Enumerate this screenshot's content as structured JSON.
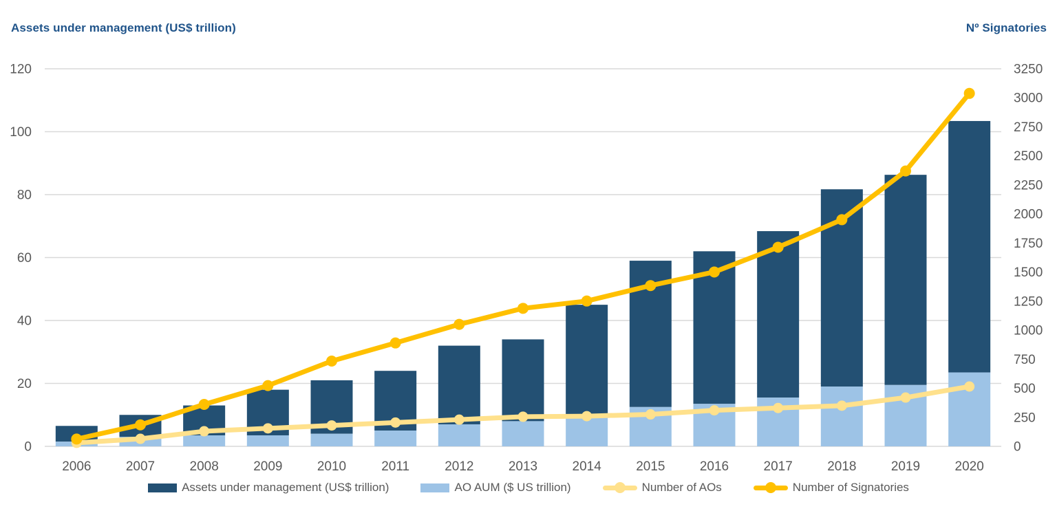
{
  "chart_data": {
    "type": "combo-bar-line",
    "categories": [
      "2006",
      "2007",
      "2008",
      "2009",
      "2010",
      "2011",
      "2012",
      "2013",
      "2014",
      "2015",
      "2016",
      "2017",
      "2018",
      "2019",
      "2020"
    ],
    "series": [
      {
        "name": "Assets under management (US$ trillion)",
        "type": "bar",
        "axis": "left",
        "color": "#235073",
        "values": [
          6.5,
          10,
          13,
          18,
          21,
          24,
          32,
          34,
          45,
          59,
          62,
          68.4,
          81.7,
          86.3,
          103.4
        ]
      },
      {
        "name": "AO AUM ($ US trillion)",
        "type": "bar-overlay",
        "axis": "left",
        "color": "#9DC3E6",
        "values": [
          1.5,
          3,
          3.5,
          3.5,
          4,
          5,
          7,
          8,
          10,
          12.5,
          13.5,
          15.5,
          19,
          19.5,
          23.5
        ]
      },
      {
        "name": "Number of AOs",
        "type": "line",
        "axis": "right",
        "color": "#FFE18C",
        "values": [
          30,
          65,
          130,
          155,
          180,
          205,
          230,
          255,
          260,
          275,
          310,
          330,
          350,
          420,
          515
        ]
      },
      {
        "name": "Number of Signatories",
        "type": "line",
        "axis": "right",
        "color": "#FFC000",
        "values": [
          63,
          185,
          361,
          523,
          734,
          890,
          1050,
          1188,
          1251,
          1384,
          1501,
          1714,
          1951,
          2370,
          3038
        ]
      }
    ],
    "left_axis": {
      "title": "Assets under management (US$ trillion)",
      "min": 0,
      "max": 120,
      "step": 20,
      "tick_labels": [
        "0",
        "20",
        "40",
        "60",
        "80",
        "100",
        "120"
      ]
    },
    "right_axis": {
      "title": "Nº Signatories",
      "min": 0,
      "max": 3250,
      "step": 250,
      "tick_labels": [
        "0",
        "250",
        "500",
        "750",
        "1000",
        "1250",
        "1500",
        "1750",
        "2000",
        "2250",
        "2500",
        "2750",
        "3000",
        "3250"
      ]
    },
    "grid": true,
    "legend_position": "bottom",
    "style": {
      "grid_color": "#D9D9D9",
      "tick_color": "#595959",
      "axis_title_color": "#20548A",
      "legend_text_color": "#595959",
      "background": "#FFFFFF"
    }
  }
}
